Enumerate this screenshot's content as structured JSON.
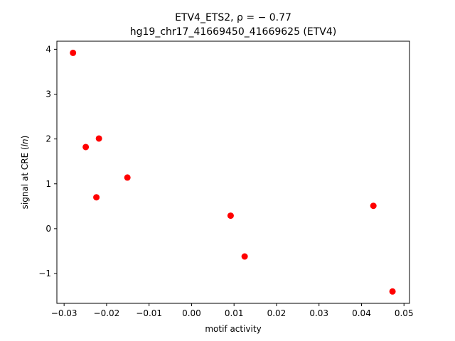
{
  "chart_data": {
    "type": "scatter",
    "title_line1": "ETV4_ETS2, ρ = − 0.77",
    "title_line2": "hg19_chr17_41669450_41669625 (ETV4)",
    "xlabel": "motif activity",
    "ylabel_prefix": "signal at CRE (",
    "ylabel_italic": "ln",
    "ylabel_suffix": ")",
    "xlim": [
      -0.0317,
      0.0513
    ],
    "ylim": [
      -1.665,
      4.18
    ],
    "xticks": [
      -0.03,
      -0.02,
      -0.01,
      0.0,
      0.01,
      0.02,
      0.03,
      0.04,
      0.05
    ],
    "xtick_labels": [
      "−0.03",
      "−0.02",
      "−0.01",
      "0.00",
      "0.01",
      "0.02",
      "0.03",
      "0.04",
      "0.05"
    ],
    "yticks": [
      -1,
      0,
      1,
      2,
      3,
      4
    ],
    "ytick_labels": [
      "−1",
      "0",
      "1",
      "2",
      "3",
      "4"
    ],
    "grid": false,
    "marker_color": "#ff0000",
    "points": [
      {
        "x": -0.0279,
        "y": 3.92
      },
      {
        "x": -0.0249,
        "y": 1.82
      },
      {
        "x": -0.0218,
        "y": 2.01
      },
      {
        "x": -0.0224,
        "y": 0.7
      },
      {
        "x": -0.0151,
        "y": 1.14
      },
      {
        "x": 0.0092,
        "y": 0.29
      },
      {
        "x": 0.0125,
        "y": -0.62
      },
      {
        "x": 0.0428,
        "y": 0.51
      },
      {
        "x": 0.0473,
        "y": -1.4
      }
    ]
  }
}
